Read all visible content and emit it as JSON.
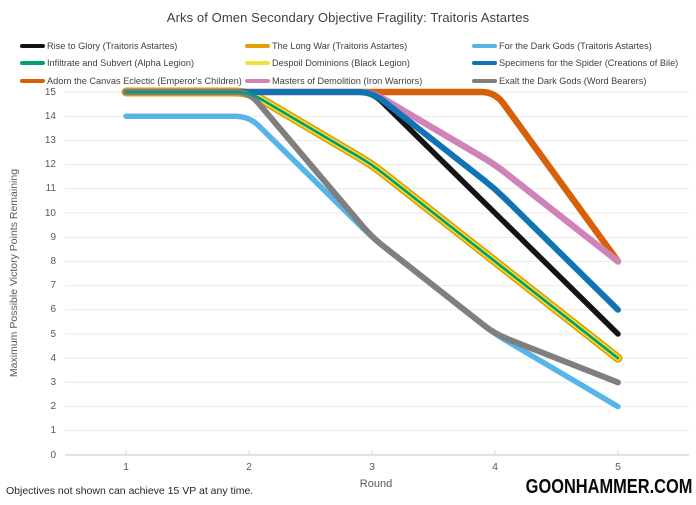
{
  "title": "Arks of Omen Secondary Objective Fragility: Traitoris Astartes",
  "footer": {
    "note": "Objectives not shown can achieve 15 VP at any time.",
    "brand": "GOONHAMMER.COM"
  },
  "chart_data": {
    "type": "line",
    "x": [
      1,
      2,
      3,
      4,
      5
    ],
    "xlabel": "Round",
    "ylabel": "Maximum Possible Victory Points Remaining",
    "ylim": [
      0,
      15
    ],
    "y_ticks": [
      0,
      1,
      2,
      3,
      4,
      5,
      6,
      7,
      8,
      9,
      10,
      11,
      12,
      13,
      14,
      15
    ],
    "grid": "horizontal",
    "grid_color": "#E9E9E9",
    "axis_color": "#C6C6C6",
    "tick_color": "#D9D9D9",
    "legend_position": "top",
    "legend_columns": 3,
    "series": [
      {
        "name": "Rise to Glory (Traitoris Astartes)",
        "color": "#141414",
        "width": 5.5,
        "values": [
          15,
          15,
          15,
          10,
          5
        ]
      },
      {
        "name": "Infiltrate and Subvert (Alpha Legion)",
        "color": "#009E73",
        "width": 2.6,
        "values": [
          15,
          15,
          12,
          8,
          4
        ]
      },
      {
        "name": "Adorn the Canvas Eclectic (Emperor's Children)",
        "color": "#D8600A",
        "width": 6.5,
        "values": [
          15,
          15,
          15,
          15,
          8
        ]
      },
      {
        "name": "The Long War (Traitoris Astartes)",
        "color": "#E69F00",
        "width": 9,
        "values": [
          15,
          15,
          12,
          8,
          4
        ]
      },
      {
        "name": "Despoil Dominions (Black Legion)",
        "color": "#EFE33C",
        "width": 5.5,
        "values": [
          15,
          15,
          12,
          8,
          4
        ]
      },
      {
        "name": "Masters of Demolition (Iron Warriors)",
        "color": "#CF83B8",
        "width": 6.5,
        "values": [
          15,
          15,
          15,
          12,
          8
        ]
      },
      {
        "name": "For the Dark Gods (Traitoris Astartes)",
        "color": "#56B4E9",
        "width": 5.5,
        "values": [
          14,
          14,
          9,
          5,
          2
        ]
      },
      {
        "name": "Specimens for the Spider (Creations of Bile)",
        "color": "#0F73B4",
        "width": 6,
        "values": [
          15,
          15,
          15,
          11,
          6
        ]
      },
      {
        "name": "Exalt the Dark Gods (Word Bearers)",
        "color": "#7F7F7F",
        "width": 6,
        "values": [
          15,
          15,
          9,
          5,
          3
        ]
      }
    ],
    "draw_order": [
      0,
      2,
      3,
      4,
      5,
      6,
      7,
      8,
      1
    ]
  }
}
